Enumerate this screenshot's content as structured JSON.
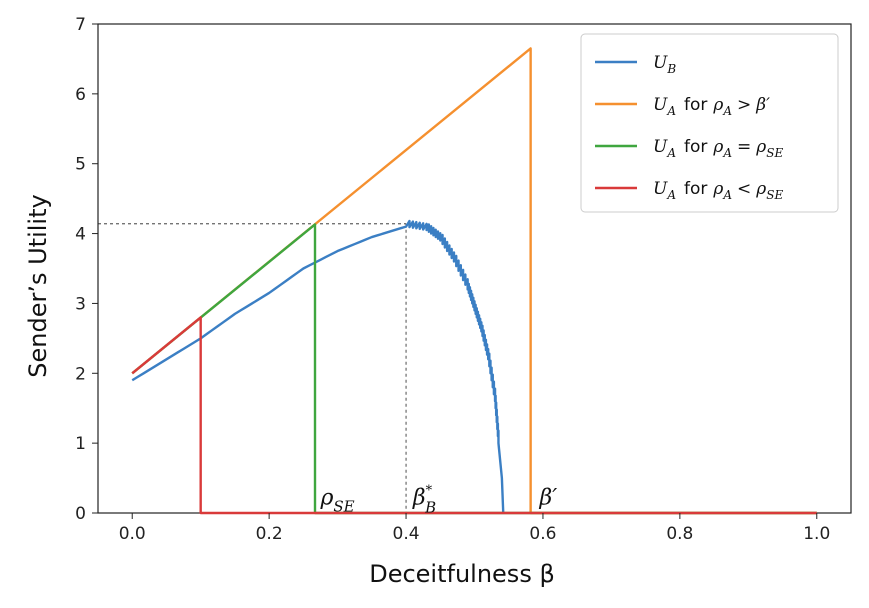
{
  "chart_data": {
    "type": "line",
    "xlabel": "Deceitfulness β",
    "ylabel": "Sender’s Utility",
    "xlim": [
      -0.05,
      1.05
    ],
    "ylim": [
      0,
      7
    ],
    "x_ticks": [
      "0.0",
      "0.2",
      "0.4",
      "0.6",
      "0.8",
      "1.0"
    ],
    "y_ticks": [
      "0",
      "1",
      "2",
      "3",
      "4",
      "5",
      "6",
      "7"
    ],
    "grid": false,
    "legend_position": "top-right",
    "series": [
      {
        "name": "U_B",
        "color": "#3b7fc4",
        "points": [
          [
            0.0,
            1.9
          ],
          [
            0.05,
            2.2
          ],
          [
            0.1,
            2.5
          ],
          [
            0.15,
            2.85
          ],
          [
            0.2,
            3.15
          ],
          [
            0.25,
            3.5
          ],
          [
            0.3,
            3.75
          ],
          [
            0.35,
            3.95
          ],
          [
            0.4,
            4.1
          ],
          [
            0.43,
            4.05
          ],
          [
            0.45,
            3.9
          ],
          [
            0.47,
            3.6
          ],
          [
            0.49,
            3.2
          ],
          [
            0.5,
            2.9
          ],
          [
            0.51,
            2.6
          ],
          [
            0.52,
            2.2
          ],
          [
            0.53,
            1.6
          ],
          [
            0.535,
            1.0
          ],
          [
            0.54,
            0.5
          ],
          [
            0.542,
            0.0
          ]
        ]
      },
      {
        "name": "U_A for ρ_A > β′",
        "color": "#f5902f",
        "points": [
          [
            0.0,
            2.0
          ],
          [
            0.582,
            6.65
          ],
          [
            0.582,
            0.0
          ],
          [
            1.0,
            0.0
          ]
        ]
      },
      {
        "name": "U_A for ρ_A = ρ_SE",
        "color": "#3fa63f",
        "points": [
          [
            0.0,
            2.0
          ],
          [
            0.267,
            4.13
          ],
          [
            0.267,
            0.0
          ],
          [
            1.0,
            0.0
          ]
        ]
      },
      {
        "name": "U_A for ρ_A < ρ_SE",
        "color": "#d93a3a",
        "points": [
          [
            0.0,
            2.0
          ],
          [
            0.1,
            2.8
          ],
          [
            0.1,
            0.0
          ],
          [
            1.0,
            0.0
          ]
        ]
      }
    ],
    "reference_lines": [
      {
        "from": [
          -0.05,
          4.14
        ],
        "to": [
          0.4,
          4.14
        ],
        "style": "dashed"
      },
      {
        "from": [
          0.4,
          4.14
        ],
        "to": [
          0.4,
          0.0
        ],
        "style": "dashed"
      }
    ],
    "annotations": [
      {
        "text": "ρ",
        "sub": "SE",
        "sup": "",
        "x": 0.275,
        "y": 0.12
      },
      {
        "text": "β",
        "sub": "B",
        "sup": "*",
        "x": 0.41,
        "y": 0.12
      },
      {
        "text": "β′",
        "sub": "",
        "sup": "",
        "x": 0.595,
        "y": 0.12
      }
    ],
    "legend": [
      {
        "main": "U",
        "main_sub": "B",
        "rest": "",
        "rest_var": "",
        "rest_sub": "",
        "op": "",
        "rhs": "",
        "rhs_sub": ""
      },
      {
        "main": "U",
        "main_sub": "A",
        "rest": "for",
        "rest_var": "ρ",
        "rest_sub": "A",
        "op": ">",
        "rhs": "β′",
        "rhs_sub": ""
      },
      {
        "main": "U",
        "main_sub": "A",
        "rest": "for",
        "rest_var": "ρ",
        "rest_sub": "A",
        "op": "=",
        "rhs": "ρ",
        "rhs_sub": "SE"
      },
      {
        "main": "U",
        "main_sub": "A",
        "rest": "for",
        "rest_var": "ρ",
        "rest_sub": "A",
        "op": "<",
        "rhs": "ρ",
        "rhs_sub": "SE"
      }
    ]
  }
}
